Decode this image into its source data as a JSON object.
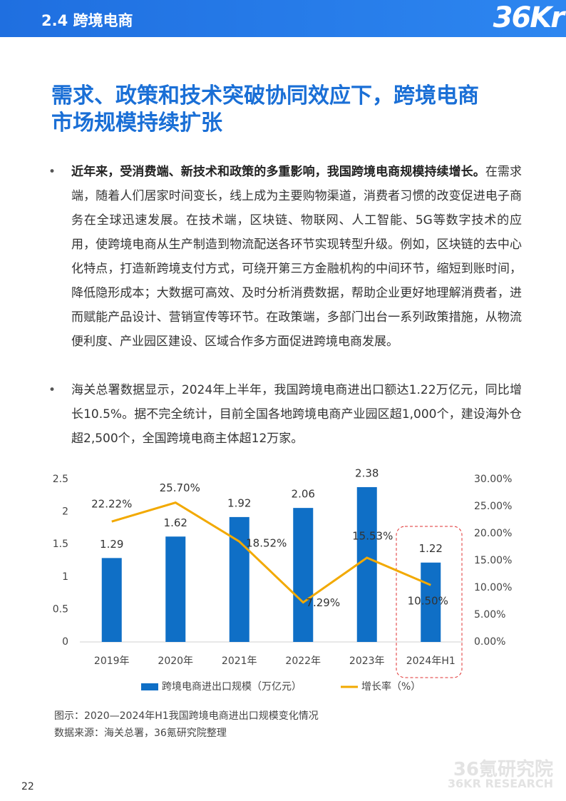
{
  "header": {
    "section": "2.4 跨境电商",
    "logo": "36Kr"
  },
  "title": [
    "需求、政策和技术突破协同效应下，跨境电商",
    "市场规模持续扩张"
  ],
  "bullets": [
    {
      "lead": "近年来，受消费端、新技术和政策的多重影响，我国跨境电商规模持续增长。",
      "text": "在需求端，随着人们居家时间变长，线上成为主要购物渠道，消费者习惯的改变促进电子商务在全球迅速发展。在技术端，区块链、物联网、人工智能、5G等数字技术的应用，使跨境电商从生产制造到物流配送各环节实现转型升级。例如，区块链的去中心化特点，打造新跨境支付方式，可绕开第三方金融机构的中间环节，缩短到账时间，降低隐形成本；大数据可高效、及时分析消费数据，帮助企业更好地理解消费者，进而赋能产品设计、营销宣传等环节。在政策端，多部门出台一系列政策措施，从物流便利度、产业园区建设、区域合作多方面促进跨境电商发展。"
    },
    {
      "text": "海关总署数据显示，2024年上半年，我国跨境电商进出口额达1.22万亿元，同比增长10.5%。据不完全统计，目前全国各地跨境电商产业园区超1,000个，建设海外仓超2,500个，全国跨境电商主体超12万家。"
    }
  ],
  "chart_data": {
    "type": "bar-line",
    "categories": [
      "2019年",
      "2020年",
      "2021年",
      "2022年",
      "2023年",
      "2024年H1"
    ],
    "series": [
      {
        "name": "跨境电商进出口规模（万亿元）",
        "type": "bar",
        "color": "#0f6fc6",
        "values": [
          1.29,
          1.62,
          1.92,
          2.06,
          2.38,
          1.22
        ]
      },
      {
        "name": "增长率（%）",
        "type": "line",
        "axis": "y2",
        "color": "#f2a900",
        "values": [
          22.22,
          25.7,
          18.52,
          7.29,
          15.53,
          10.5
        ],
        "value_labels": [
          "22.22%",
          "25.70%",
          "18.52%",
          "7.29%",
          "15.53%",
          "10.50%"
        ]
      }
    ],
    "ylim": [
      0,
      2.5
    ],
    "yticks": [
      0,
      0.5,
      1,
      1.5,
      2,
      2.5
    ],
    "y2lim": [
      0,
      30
    ],
    "y2ticks": [
      {
        "value": 0,
        "label": "0.00%"
      },
      {
        "value": 5,
        "label": "5.00%"
      },
      {
        "value": 10,
        "label": "10.00%"
      },
      {
        "value": 15,
        "label": "15.00%"
      },
      {
        "value": 20,
        "label": "20.00%"
      },
      {
        "value": 25,
        "label": "25.00%"
      },
      {
        "value": 30,
        "label": "30.00%"
      }
    ],
    "grid": false,
    "legend": "bottom"
  },
  "caption": [
    "图示：2020—2024年H1我国跨境电商进出口规模变化情况",
    "数据来源：海关总署，36氪研究院整理"
  ],
  "watermark": [
    "36氪研究院",
    "36KR RESEARCH"
  ],
  "page_number": "22"
}
